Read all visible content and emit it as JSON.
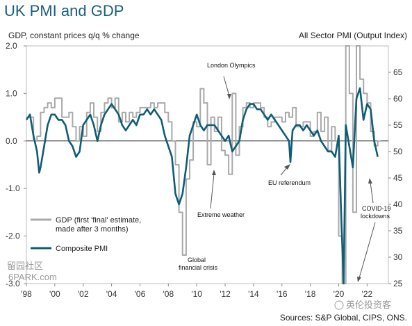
{
  "chart_data": {
    "type": "line",
    "title": "UK PMI and GDP",
    "left_axis_label": "GDP, constant prices q/q % change",
    "right_axis_label": "All Sector PMI (Output Index)",
    "left_ylim": [
      -3.0,
      2.0
    ],
    "right_ylim": [
      25,
      70
    ],
    "left_ticks": [
      "2.0",
      "1.0",
      "0.0",
      "-1.0",
      "-2.0",
      "-3.0"
    ],
    "right_ticks": [
      "65",
      "60",
      "55",
      "50",
      "45",
      "40",
      "35",
      "30",
      "25"
    ],
    "x_range": [
      1998,
      2023.5
    ],
    "x_ticks": [
      {
        "x": 1998,
        "label": "'98"
      },
      {
        "x": 2000,
        "label": "'00"
      },
      {
        "x": 2002,
        "label": "'02"
      },
      {
        "x": 2004,
        "label": "'04"
      },
      {
        "x": 2006,
        "label": "'06"
      },
      {
        "x": 2008,
        "label": "'08"
      },
      {
        "x": 2010,
        "label": "'10"
      },
      {
        "x": 2012,
        "label": "'12"
      },
      {
        "x": 2014,
        "label": "'14"
      },
      {
        "x": 2016,
        "label": "'16"
      },
      {
        "x": 2018,
        "label": "'18"
      },
      {
        "x": 2020,
        "label": "'20"
      },
      {
        "x": 2022,
        "label": "'22"
      }
    ],
    "grid": false,
    "legend_position": "bottom-left",
    "series": [
      {
        "name": "GDP (first 'final' estimate, made after 3 months)",
        "axis": "left",
        "color": "#a9a9a9",
        "x": [
          1998.0,
          1998.25,
          1998.5,
          1998.75,
          1999.0,
          1999.25,
          1999.5,
          1999.75,
          2000.0,
          2000.25,
          2000.5,
          2000.75,
          2001.0,
          2001.25,
          2001.5,
          2001.75,
          2002.0,
          2002.25,
          2002.5,
          2002.75,
          2003.0,
          2003.25,
          2003.5,
          2003.75,
          2004.0,
          2004.25,
          2004.5,
          2004.75,
          2005.0,
          2005.25,
          2005.5,
          2005.75,
          2006.0,
          2006.25,
          2006.5,
          2006.75,
          2007.0,
          2007.25,
          2007.5,
          2007.75,
          2008.0,
          2008.25,
          2008.5,
          2008.75,
          2009.0,
          2009.25,
          2009.5,
          2009.75,
          2010.0,
          2010.25,
          2010.5,
          2010.75,
          2011.0,
          2011.25,
          2011.5,
          2011.75,
          2012.0,
          2012.25,
          2012.5,
          2012.75,
          2013.0,
          2013.25,
          2013.5,
          2013.75,
          2014.0,
          2014.25,
          2014.5,
          2014.75,
          2015.0,
          2015.25,
          2015.5,
          2015.75,
          2016.0,
          2016.25,
          2016.5,
          2016.75,
          2017.0,
          2017.25,
          2017.5,
          2017.75,
          2018.0,
          2018.25,
          2018.5,
          2018.75,
          2019.0,
          2019.25,
          2019.5,
          2019.75,
          2020.0,
          2020.25,
          2020.5,
          2020.75,
          2021.0,
          2021.25,
          2021.5,
          2021.75,
          2022.0,
          2022.25,
          2022.5,
          2022.75
        ],
        "y": [
          0.5,
          0.5,
          0.0,
          0.1,
          0.6,
          0.7,
          0.8,
          0.7,
          0.9,
          0.9,
          0.5,
          0.5,
          0.6,
          0.3,
          0.0,
          0.3,
          0.1,
          0.6,
          0.8,
          0.5,
          0.2,
          0.6,
          0.8,
          0.9,
          0.7,
          0.9,
          0.4,
          0.6,
          0.4,
          0.6,
          0.5,
          0.6,
          0.7,
          0.7,
          0.7,
          0.8,
          0.7,
          0.8,
          0.8,
          0.6,
          0.4,
          0.0,
          -0.5,
          -1.5,
          -2.4,
          -0.8,
          -0.4,
          0.4,
          0.3,
          1.1,
          0.8,
          -0.5,
          0.5,
          0.2,
          0.5,
          -0.2,
          -0.3,
          -0.7,
          1.0,
          -0.3,
          0.3,
          0.7,
          0.8,
          0.7,
          0.8,
          0.8,
          0.7,
          0.5,
          0.3,
          0.4,
          0.5,
          0.5,
          0.4,
          0.6,
          0.5,
          0.7,
          0.3,
          0.3,
          0.4,
          0.4,
          0.1,
          0.2,
          0.6,
          0.2,
          0.5,
          -0.2,
          0.3,
          0.0,
          -2.0,
          -3.0,
          2.0,
          1.0,
          -1.5,
          4.0,
          1.3,
          1.0,
          0.8,
          0.2,
          -0.1,
          0.0
        ]
      },
      {
        "name": "Composite PMI",
        "axis": "right",
        "color": "#0f5c75",
        "x": [
          1998.0,
          1998.25,
          1998.5,
          1998.75,
          1998.9,
          1999.0,
          1999.25,
          1999.5,
          1999.75,
          2000.0,
          2000.25,
          2000.5,
          2000.75,
          2001.0,
          2001.25,
          2001.5,
          2001.75,
          2002.0,
          2002.25,
          2002.5,
          2002.75,
          2003.0,
          2003.25,
          2003.5,
          2003.75,
          2004.0,
          2004.25,
          2004.5,
          2004.75,
          2005.0,
          2005.25,
          2005.5,
          2005.75,
          2006.0,
          2006.25,
          2006.5,
          2006.75,
          2007.0,
          2007.25,
          2007.5,
          2007.75,
          2008.0,
          2008.25,
          2008.5,
          2008.75,
          2009.0,
          2009.25,
          2009.5,
          2009.75,
          2010.0,
          2010.25,
          2010.5,
          2010.75,
          2011.0,
          2011.25,
          2011.5,
          2011.75,
          2012.0,
          2012.25,
          2012.5,
          2012.75,
          2013.0,
          2013.25,
          2013.5,
          2013.75,
          2014.0,
          2014.25,
          2014.5,
          2014.75,
          2015.0,
          2015.25,
          2015.5,
          2015.75,
          2016.0,
          2016.25,
          2016.5,
          2016.6,
          2016.75,
          2017.0,
          2017.25,
          2017.5,
          2017.75,
          2018.0,
          2018.25,
          2018.5,
          2018.75,
          2019.0,
          2019.25,
          2019.5,
          2019.75,
          2020.0,
          2020.2,
          2020.35,
          2020.5,
          2020.75,
          2021.0,
          2021.25,
          2021.5,
          2021.75,
          2022.0,
          2022.25,
          2022.5,
          2022.75
        ],
        "y": [
          56,
          57,
          53,
          50,
          46,
          47,
          51,
          55,
          57,
          57,
          56,
          56,
          55,
          52,
          51,
          49,
          50,
          55,
          56,
          57,
          55,
          52,
          55,
          57,
          58,
          59,
          58,
          57,
          55,
          54,
          55,
          56,
          55,
          57,
          57,
          58,
          57,
          58,
          57,
          56,
          53,
          51,
          49,
          42,
          40,
          42,
          47,
          53,
          55,
          57,
          55,
          54,
          55,
          55,
          55,
          54,
          53,
          52,
          53,
          50,
          51,
          52,
          56,
          58,
          59,
          59,
          58,
          58,
          57,
          56,
          57,
          56,
          55,
          54,
          53,
          52,
          48,
          54,
          55,
          55,
          54,
          55,
          54,
          53,
          54,
          52,
          51,
          50,
          50,
          49,
          53,
          36,
          14,
          55,
          51,
          47,
          60,
          62,
          56,
          59,
          58,
          52,
          49
        ]
      }
    ],
    "annotations": [
      {
        "text": "London Olympics"
      },
      {
        "text": "Extreme weather"
      },
      {
        "text": "Global"
      },
      {
        "text": "financial crisis"
      },
      {
        "text": "EU referendum"
      },
      {
        "text": "COVID-19"
      },
      {
        "text": "lockdowns"
      }
    ],
    "legend": [
      {
        "line1": "GDP (first 'final' estimate,",
        "line2": "made after 3 months)",
        "color": "#a9a9a9"
      },
      {
        "line1": "Composite PMI",
        "line2": "",
        "color": "#0f5c75"
      }
    ],
    "source": "Sources: S&P Global, CIPS, ONS.",
    "watermark_top": "留园社区",
    "watermark_bottom": "6PARK.com",
    "watermark_right": "英伦投资客"
  }
}
